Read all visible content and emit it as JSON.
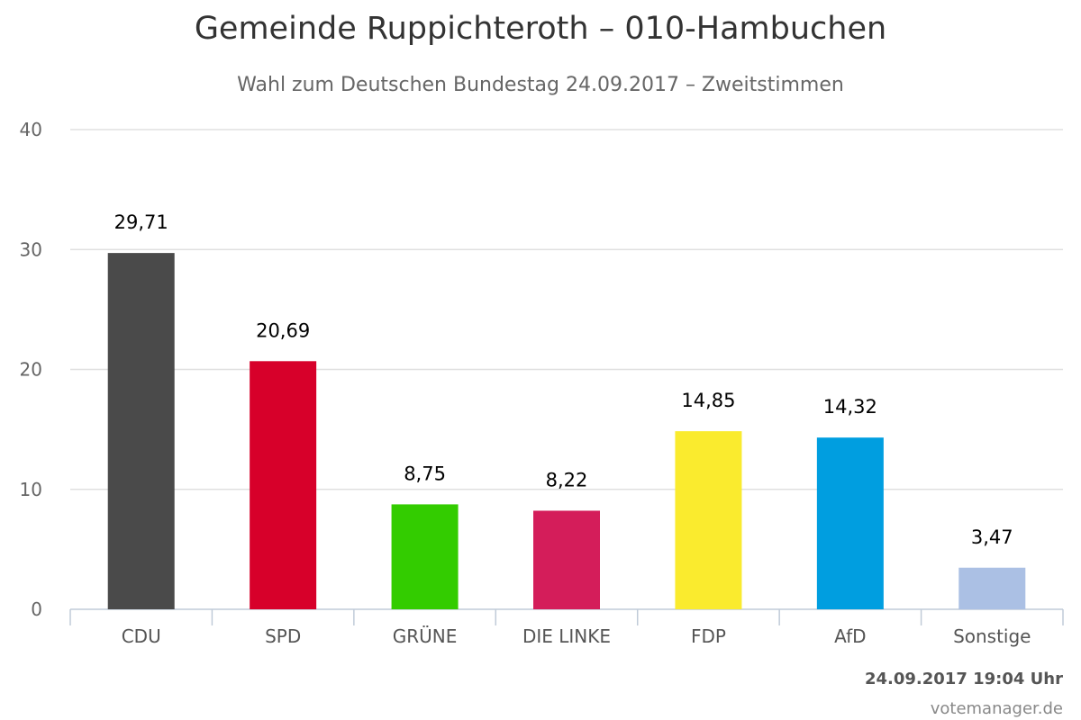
{
  "chart_data": {
    "type": "bar",
    "title": "Gemeinde Ruppichteroth – 010-Hambuchen",
    "subtitle": "Wahl zum Deutschen Bundestag 24.09.2017 – Zweitstimmen",
    "categories": [
      "CDU",
      "SPD",
      "GRÜNE",
      "DIE LINKE",
      "FDP",
      "AfD",
      "Sonstige"
    ],
    "values": [
      29.71,
      20.69,
      8.75,
      8.22,
      14.85,
      14.32,
      3.47
    ],
    "value_labels": [
      "29,71",
      "20,69",
      "8,75",
      "8,22",
      "14,85",
      "14,32",
      "3,47"
    ],
    "colors": [
      "#4a4a4a",
      "#d7002a",
      "#33cc00",
      "#d41d5a",
      "#faeb2e",
      "#009ee0",
      "#abc0e4"
    ],
    "ylim": [
      0,
      40
    ],
    "yticks": [
      0,
      10,
      20,
      30,
      40
    ],
    "grid": true,
    "legend": "none",
    "xlabel": "",
    "ylabel": ""
  },
  "footer": {
    "timestamp": "24.09.2017 19:04 Uhr",
    "credit": "votemanager.de"
  }
}
